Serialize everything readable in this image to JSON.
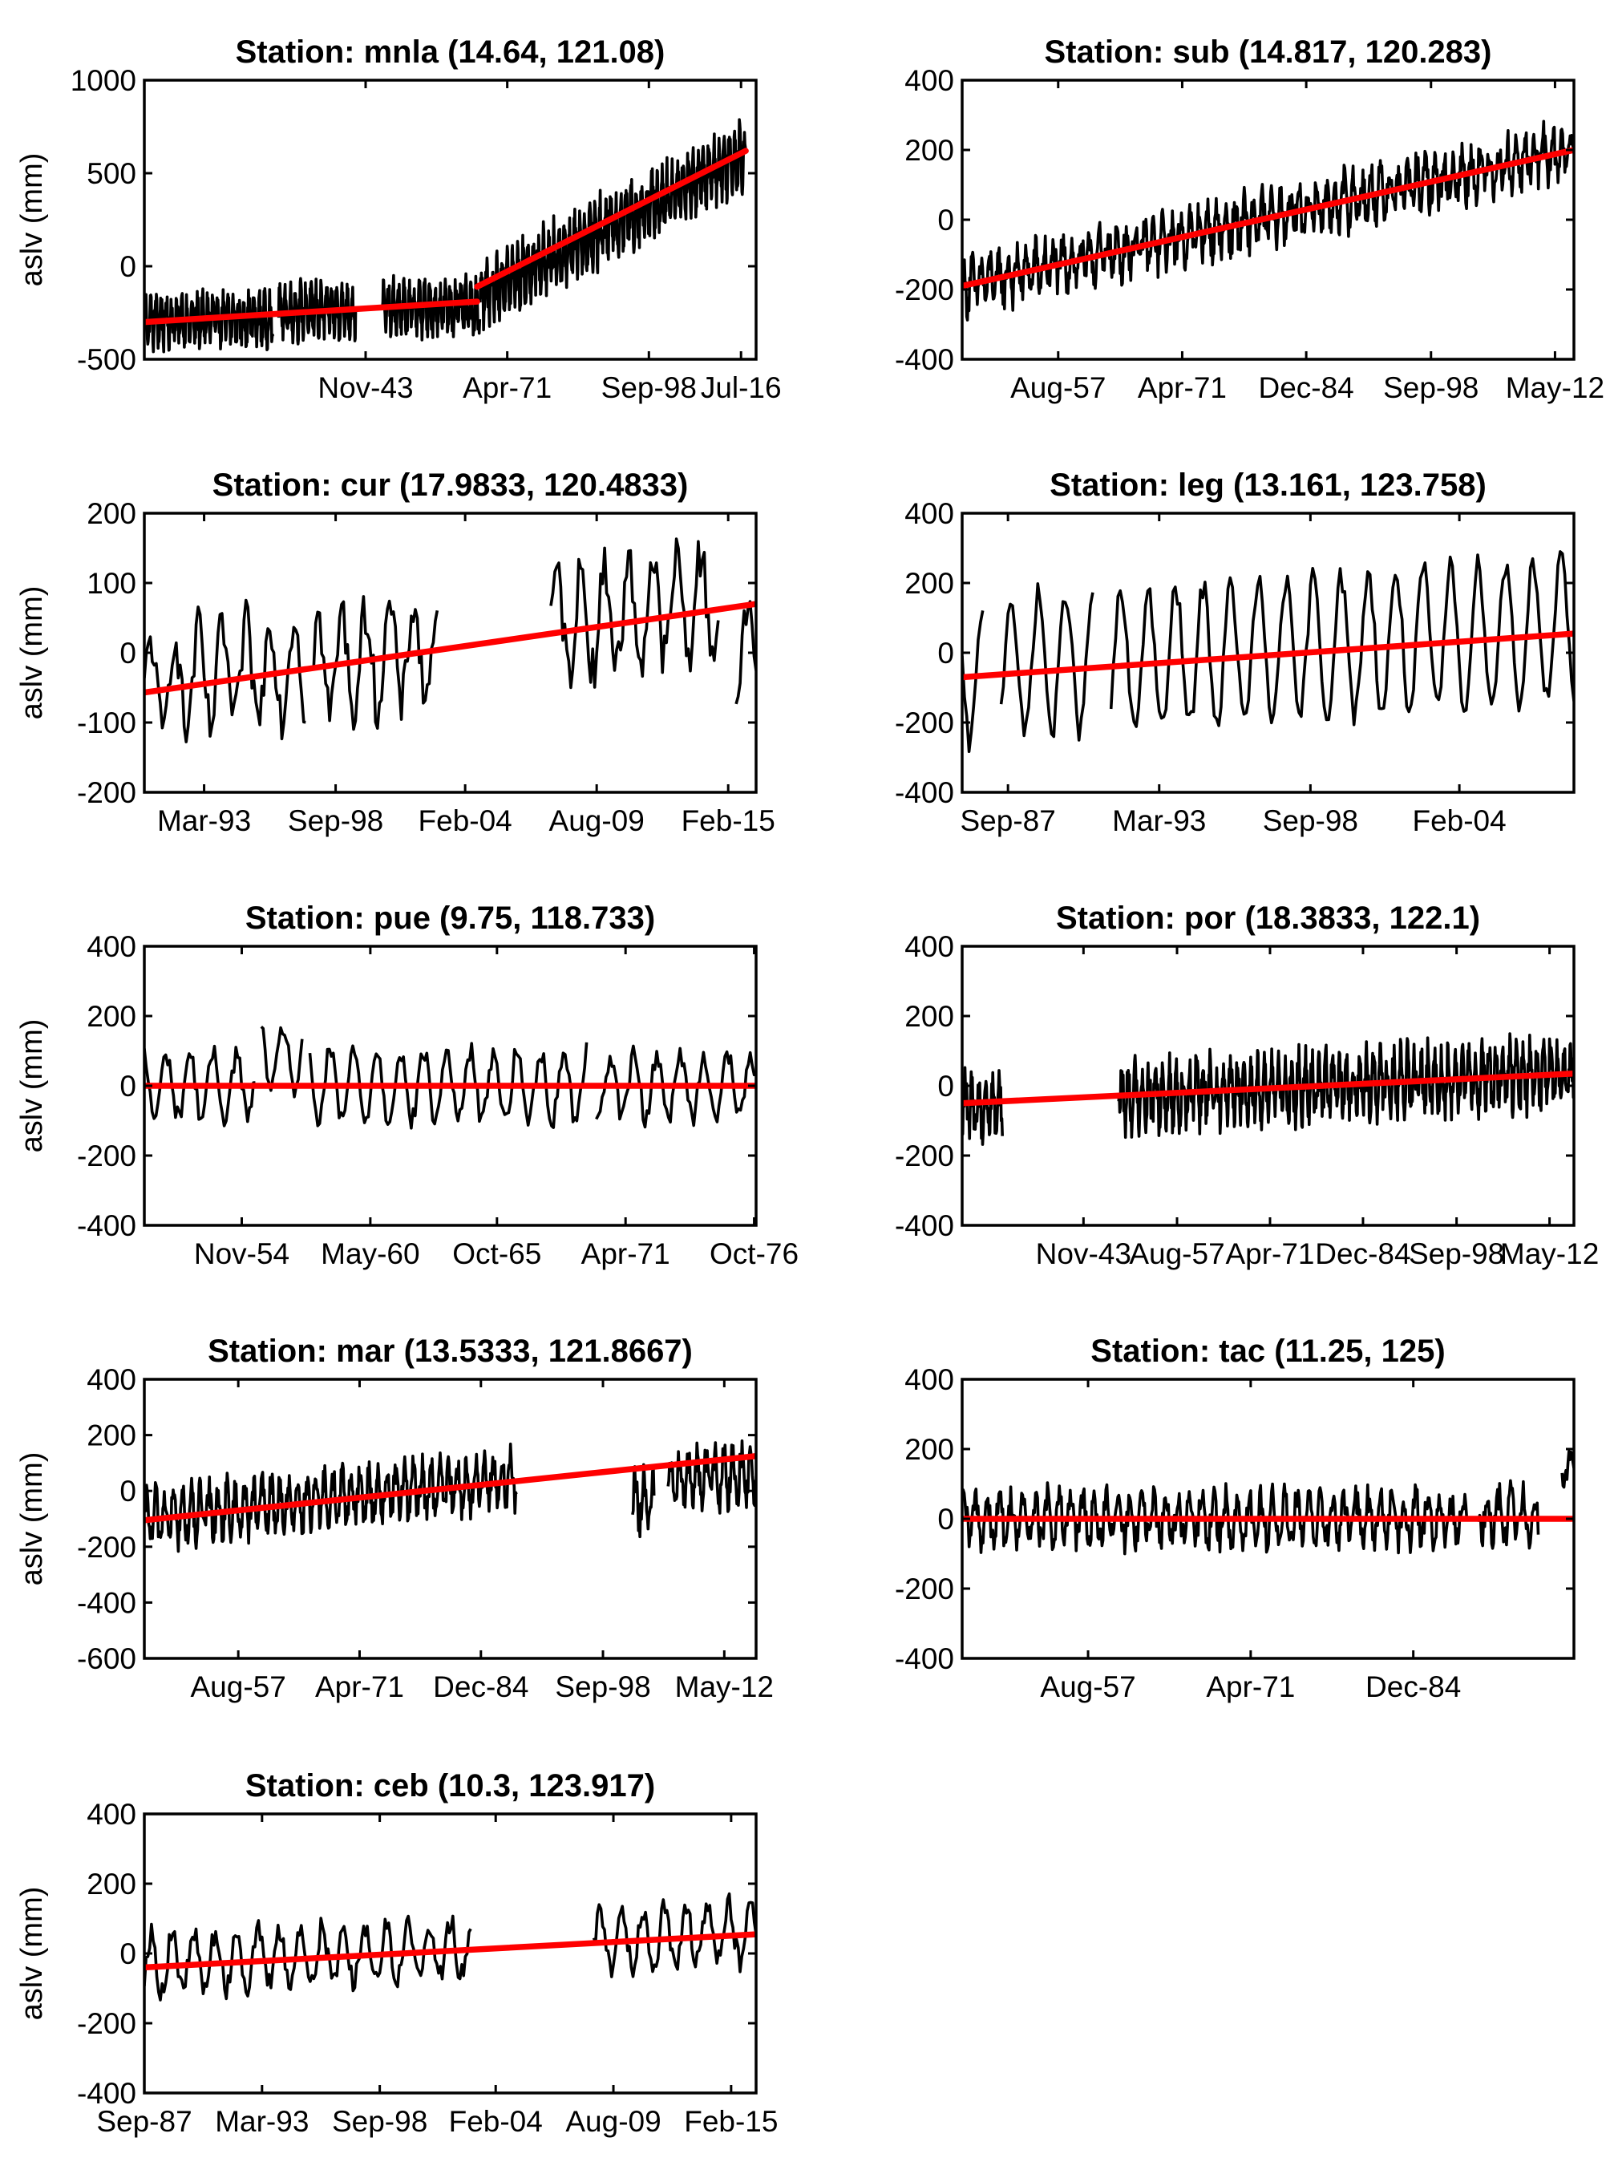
{
  "figure": {
    "style": {
      "observed_color": "#000000",
      "trend_color": "#ff0000",
      "background": "#ffffff"
    },
    "panel_grid": {
      "rows": 5,
      "cols": 2
    }
  },
  "chart_data": [
    {
      "type": "line",
      "title": "Station: mnla (14.64, 121.08)",
      "ylabel": "aslv (mm)",
      "xlabel": "",
      "ylim": [
        -500,
        1000
      ],
      "yticks": [
        "-500",
        "0",
        "500",
        "1000"
      ],
      "xlim": [
        "1901-01",
        "2019-06"
      ],
      "xticks": [
        "Jul-16",
        "Nov-43",
        "Apr-71",
        "Sep-98"
      ],
      "grid": false,
      "series": [
        {
          "segments": [
            {
              "start": "1901-01",
              "end": "1925-12",
              "base": -290,
              "slope": 0.3,
              "amp": 110,
              "noise": 70
            },
            {
              "start": "1927-01",
              "end": "1941-12",
              "base": -240,
              "slope": 0.3,
              "amp": 110,
              "noise": 70
            },
            {
              "start": "1947-01",
              "end": "1965-12",
              "base": -230,
              "slope": 0.6,
              "amp": 110,
              "noise": 70
            },
            {
              "start": "1966-01",
              "end": "2017-06",
              "base": -160,
              "slope": 15,
              "amp": 130,
              "noise": 90
            }
          ]
        },
        {
          "trend": [
            {
              "x": [
                "1901-01",
                "1965-06"
              ],
              "y": [
                -300,
                -190
              ]
            },
            {
              "x": [
                "1965-06",
                "2017-06"
              ],
              "y": [
                -110,
                620
              ]
            }
          ]
        }
      ]
    },
    {
      "type": "line",
      "title": "Station: sub (14.817, 120.283)",
      "ylabel": "",
      "xlabel": "",
      "ylim": [
        -400,
        400
      ],
      "yticks": [
        "-400",
        "-200",
        "0",
        "200",
        "400"
      ],
      "xlim": [
        "1947-01",
        "2014-06"
      ],
      "xticks": [
        "Aug-57",
        "Apr-71",
        "Dec-84",
        "Sep-98",
        "May-12"
      ],
      "grid": false,
      "series": [
        {
          "segments": [
            {
              "start": "1947-01",
              "end": "2014-06",
              "base": -190,
              "slope": 5.8,
              "amp": 55,
              "noise": 50
            }
          ]
        },
        {
          "trend": [
            {
              "x": [
                "1947-01",
                "2014-06"
              ],
              "y": [
                -190,
                200
              ]
            }
          ]
        }
      ]
    },
    {
      "type": "line",
      "title": "Station: cur (17.9833, 120.4833)",
      "ylabel": "aslv (mm)",
      "xlabel": "",
      "ylim": [
        -200,
        200
      ],
      "yticks": [
        "-200",
        "-100",
        "0",
        "100",
        "200"
      ],
      "xlim": [
        "1990-09",
        "2016-04"
      ],
      "xticks": [
        "Mar-93",
        "Sep-98",
        "Feb-04",
        "Aug-09",
        "Feb-15"
      ],
      "grid": false,
      "series": [
        {
          "segments": [
            {
              "start": "1990-09",
              "end": "1997-06",
              "base": -50,
              "slope": 5,
              "amp": 70,
              "noise": 35
            },
            {
              "start": "1997-10",
              "end": "2002-12",
              "base": -20,
              "slope": 5,
              "amp": 70,
              "noise": 35
            },
            {
              "start": "2007-09",
              "end": "2014-09",
              "base": 40,
              "slope": 5,
              "amp": 70,
              "noise": 35
            },
            {
              "start": "2015-06",
              "end": "2016-04",
              "base": 0,
              "slope": 5,
              "amp": 70,
              "noise": 35
            }
          ]
        },
        {
          "trend": [
            {
              "x": [
                "1990-09",
                "2016-04"
              ],
              "y": [
                -57,
                70
              ]
            }
          ]
        }
      ]
    },
    {
      "type": "line",
      "title": "Station: leg (13.161, 123.758)",
      "ylabel": "",
      "xlabel": "",
      "ylim": [
        -400,
        400
      ],
      "yticks": [
        "-400",
        "-200",
        "0",
        "200",
        "400"
      ],
      "xlim": [
        "1986-01",
        "2008-04"
      ],
      "xticks": [
        "Sep-87",
        "Mar-93",
        "Sep-98",
        "Feb-04"
      ],
      "grid": false,
      "series": [
        {
          "segments": [
            {
              "start": "1986-01",
              "end": "1986-10",
              "base": -60,
              "slope": 6,
              "amp": 200,
              "noise": 35
            },
            {
              "start": "1987-06",
              "end": "1990-10",
              "base": -40,
              "slope": 6,
              "amp": 200,
              "noise": 35
            },
            {
              "start": "1991-06",
              "end": "2008-04",
              "base": -30,
              "slope": 6,
              "amp": 200,
              "noise": 35
            }
          ]
        },
        {
          "trend": [
            {
              "x": [
                "1986-01",
                "2008-04"
              ],
              "y": [
                -70,
                55
              ]
            }
          ]
        }
      ]
    },
    {
      "type": "line",
      "title": "Station: pue (9.75, 118.733)",
      "ylabel": "aslv (mm)",
      "xlabel": "",
      "ylim": [
        -400,
        400
      ],
      "yticks": [
        "-400",
        "-200",
        "0",
        "200",
        "400"
      ],
      "xlim": [
        "1950-09",
        "1976-11"
      ],
      "xticks": [
        "Nov-54",
        "May-60",
        "Oct-65",
        "Apr-71",
        "Oct-76"
      ],
      "grid": false,
      "series": [
        {
          "segments": [
            {
              "start": "1950-09",
              "end": "1955-06",
              "base": 0,
              "slope": 0,
              "amp": 90,
              "noise": 30
            },
            {
              "start": "1955-09",
              "end": "1957-06",
              "base": 80,
              "slope": 0,
              "amp": 90,
              "noise": 30
            },
            {
              "start": "1957-10",
              "end": "1969-08",
              "base": 0,
              "slope": 0,
              "amp": 100,
              "noise": 30
            },
            {
              "start": "1970-01",
              "end": "1976-11",
              "base": 0,
              "slope": 0,
              "amp": 90,
              "noise": 30
            }
          ]
        },
        {
          "trend": [
            {
              "x": [
                "1950-09",
                "1976-11"
              ],
              "y": [
                0,
                0
              ]
            }
          ]
        }
      ]
    },
    {
      "type": "line",
      "title": "Station: por (18.3833, 122.1)",
      "ylabel": "",
      "xlabel": "",
      "ylim": [
        -400,
        400
      ],
      "yticks": [
        "-400",
        "-200",
        "0",
        "200",
        "400"
      ],
      "xlim": [
        "1926-01",
        "2015-12"
      ],
      "xticks": [
        "Nov-43",
        "Aug-57",
        "Apr-71",
        "Dec-84",
        "Sep-98",
        "May-12"
      ],
      "grid": false,
      "series": [
        {
          "segments": [
            {
              "start": "1926-01",
              "end": "1931-12",
              "base": -60,
              "slope": 1,
              "amp": 70,
              "noise": 50
            },
            {
              "start": "1949-01",
              "end": "2015-12",
              "base": -30,
              "slope": 1,
              "amp": 70,
              "noise": 55
            }
          ]
        },
        {
          "trend": [
            {
              "x": [
                "1926-01",
                "2015-12"
              ],
              "y": [
                -50,
                35
              ]
            }
          ]
        }
      ]
    },
    {
      "type": "line",
      "title": "Station: mar (13.5333, 121.8667)",
      "ylabel": "aslv (mm)",
      "xlabel": "",
      "ylim": [
        -600,
        400
      ],
      "yticks": [
        "-600",
        "-400",
        "-200",
        "0",
        "200",
        "400"
      ],
      "xlim": [
        "1947-01",
        "2015-12"
      ],
      "xticks": [
        "Aug-57",
        "Apr-71",
        "Dec-84",
        "Sep-98",
        "May-12"
      ],
      "grid": false,
      "series": [
        {
          "segments": [
            {
              "start": "1947-01",
              "end": "1988-12",
              "base": -100,
              "slope": 3.4,
              "amp": 80,
              "noise": 55
            },
            {
              "start": "2002-01",
              "end": "2004-06",
              "base": -40,
              "slope": 3.4,
              "amp": 80,
              "noise": 55
            },
            {
              "start": "2006-01",
              "end": "2015-12",
              "base": 30,
              "slope": 3.4,
              "amp": 80,
              "noise": 55
            }
          ]
        },
        {
          "trend": [
            {
              "x": [
                "1947-01",
                "2015-12"
              ],
              "y": [
                -105,
                125
              ]
            }
          ]
        }
      ]
    },
    {
      "type": "line",
      "title": "Station: tac (11.25, 125)",
      "ylabel": "",
      "xlabel": "",
      "ylim": [
        -400,
        400
      ],
      "yticks": [
        "-400",
        "-200",
        "0",
        "200",
        "400"
      ],
      "xlim": [
        "1947-01",
        "1998-06"
      ],
      "xticks": [
        "Aug-57",
        "Apr-71",
        "Dec-84"
      ],
      "grid": false,
      "series": [
        {
          "segments": [
            {
              "start": "1947-01",
              "end": "1989-06",
              "base": 0,
              "slope": 0,
              "amp": 60,
              "noise": 45
            },
            {
              "start": "1990-06",
              "end": "1995-06",
              "base": 10,
              "slope": 0,
              "amp": 60,
              "noise": 45
            },
            {
              "start": "1997-06",
              "end": "1998-06",
              "base": 150,
              "slope": 0,
              "amp": 40,
              "noise": 30
            }
          ]
        },
        {
          "trend": [
            {
              "x": [
                "1947-01",
                "1998-06"
              ],
              "y": [
                0,
                0
              ]
            }
          ]
        }
      ]
    },
    {
      "type": "line",
      "title": "Station: ceb (10.3, 123.917)",
      "ylabel": "aslv (mm)",
      "xlabel": "",
      "ylim": [
        -400,
        400
      ],
      "yticks": [
        "-400",
        "-200",
        "0",
        "200",
        "400"
      ],
      "xlim": [
        "1987-09",
        "2016-04"
      ],
      "xticks": [
        "Sep-87",
        "Mar-93",
        "Sep-98",
        "Feb-04",
        "Aug-09",
        "Feb-15"
      ],
      "grid": false,
      "series": [
        {
          "segments": [
            {
              "start": "1987-09",
              "end": "2002-12",
              "base": -30,
              "slope": 3,
              "amp": 80,
              "noise": 35
            },
            {
              "start": "2008-09",
              "end": "2016-04",
              "base": 40,
              "slope": 3,
              "amp": 80,
              "noise": 35
            }
          ]
        },
        {
          "trend": [
            {
              "x": [
                "1987-09",
                "2016-04"
              ],
              "y": [
                -40,
                55
              ]
            }
          ]
        }
      ]
    }
  ]
}
